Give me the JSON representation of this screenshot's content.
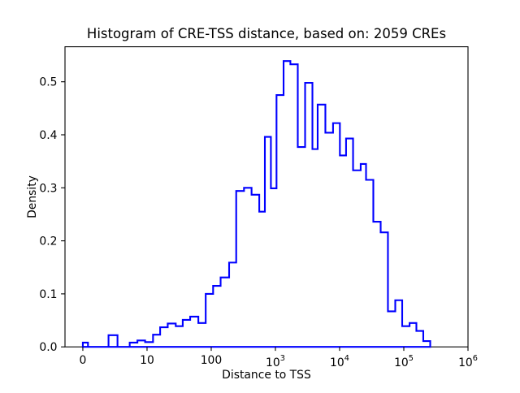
{
  "chart_data": {
    "type": "bar",
    "subtype": "step-histogram",
    "title": "Histogram of CRE-TSS distance, based on: 2059 CREs",
    "xlabel": "Distance to TSS",
    "ylabel": "Density",
    "line_color": "#0000ff",
    "axis_color": "#000000",
    "x_scale": "symlog",
    "linthresh": 10,
    "xlim": [
      -2.78,
      1000000
    ],
    "ylim": [
      0,
      0.566
    ],
    "grid": "off",
    "legend": "none",
    "x_ticks": [
      {
        "value": 0,
        "label": "0"
      },
      {
        "value": 10,
        "label": "10"
      },
      {
        "value": 100,
        "label": "100"
      },
      {
        "value": 1000,
        "base": "10",
        "exp": "3"
      },
      {
        "value": 10000,
        "base": "10",
        "exp": "4"
      },
      {
        "value": 100000,
        "base": "10",
        "exp": "5"
      },
      {
        "value": 1000000,
        "base": "10",
        "exp": "6"
      }
    ],
    "y_ticks": [
      {
        "value": 0.0,
        "label": "0.0"
      },
      {
        "value": 0.1,
        "label": "0.1"
      },
      {
        "value": 0.2,
        "label": "0.2"
      },
      {
        "value": 0.3,
        "label": "0.3"
      },
      {
        "value": 0.4,
        "label": "0.4"
      },
      {
        "value": 0.5,
        "label": "0.5"
      }
    ],
    "bin_edges": [
      0,
      0.8,
      4.0,
      5.4,
      7.3,
      8.5,
      9.7,
      12.4,
      16,
      21,
      28,
      36,
      47,
      63,
      82,
      107,
      140,
      190,
      245,
      324,
      425,
      560,
      685,
      850,
      1040,
      1340,
      1710,
      2230,
      2900,
      3770,
      4550,
      6000,
      7900,
      10100,
      12600,
      16200,
      21300,
      25800,
      33500,
      43600,
      56600,
      73600,
      94400,
      123000,
      157000,
      201000,
      258000
    ],
    "densities": [
      0.008,
      0,
      0.022,
      0,
      0.008,
      0.012,
      0.009,
      0.023,
      0.037,
      0.044,
      0.039,
      0.051,
      0.057,
      0.045,
      0.1,
      0.115,
      0.131,
      0.159,
      0.294,
      0.3,
      0.287,
      0.255,
      0.396,
      0.299,
      0.475,
      0.539,
      0.533,
      0.377,
      0.498,
      0.373,
      0.457,
      0.404,
      0.422,
      0.361,
      0.393,
      0.333,
      0.345,
      0.315,
      0.236,
      0.216,
      0.067,
      0.088,
      0.039,
      0.045,
      0.03,
      0.011
    ]
  }
}
